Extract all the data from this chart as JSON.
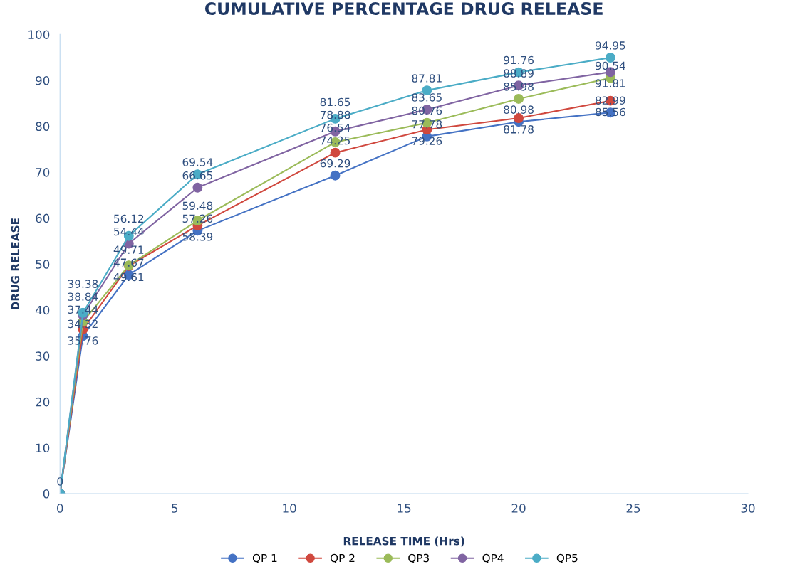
{
  "chart_data": {
    "type": "line",
    "title": "CUMULATIVE PERCENTAGE DRUG RELEASE",
    "xlabel": "RELEASE TIME (Hrs)",
    "ylabel": "DRUG RELEASE",
    "x": [
      0,
      1,
      3,
      6,
      12,
      16,
      20,
      24
    ],
    "series": [
      {
        "name": "QP 1",
        "color": "#4472c4",
        "values": [
          0,
          34.32,
          47.67,
          57.26,
          69.29,
          77.78,
          80.98,
          82.99
        ],
        "value_labels": [
          "0",
          "34.32",
          "47.67",
          "57.26",
          "69.29",
          "77.78",
          "80.98",
          "82.99"
        ]
      },
      {
        "name": "QP 2",
        "color": "#d0483e",
        "values": [
          0,
          35.76,
          49.61,
          58.39,
          74.25,
          79.26,
          81.78,
          85.56
        ],
        "value_labels": [
          null,
          "35.76",
          "49.61",
          "58.39",
          "74.25",
          "79.26",
          "81.78",
          "85.56"
        ]
      },
      {
        "name": "QP3",
        "color": "#9bbb59",
        "values": [
          0,
          37.44,
          49.71,
          59.48,
          76.54,
          80.76,
          85.98,
          90.54
        ],
        "value_labels": [
          null,
          "37.44",
          "49.71",
          "59.48",
          "76.54",
          "80.76",
          "85.98",
          "90.54"
        ]
      },
      {
        "name": "QP4",
        "color": "#8064a2",
        "values": [
          0,
          38.84,
          54.44,
          66.65,
          78.88,
          83.65,
          88.89,
          91.81
        ],
        "value_labels": [
          null,
          "38.84",
          "54.44",
          "66.65",
          "78.88",
          "83.65",
          "88.89",
          "91.81"
        ]
      },
      {
        "name": "QP5",
        "color": "#4bacc6",
        "values": [
          0,
          39.38,
          56.12,
          69.54,
          81.65,
          87.81,
          91.76,
          94.95
        ],
        "value_labels": [
          null,
          "39.38",
          "56.12",
          "69.54",
          "81.65",
          "87.81",
          "91.76",
          "94.95"
        ]
      }
    ],
    "xlim": [
      0,
      30
    ],
    "xticks": [
      0,
      5,
      10,
      15,
      20,
      25,
      30
    ],
    "ylim": [
      0,
      100
    ],
    "yticks": [
      0,
      10,
      20,
      30,
      40,
      50,
      60,
      70,
      80,
      90,
      100
    ],
    "grid": false,
    "legend": "bottom",
    "marker": "circle",
    "line_style": "solid"
  }
}
